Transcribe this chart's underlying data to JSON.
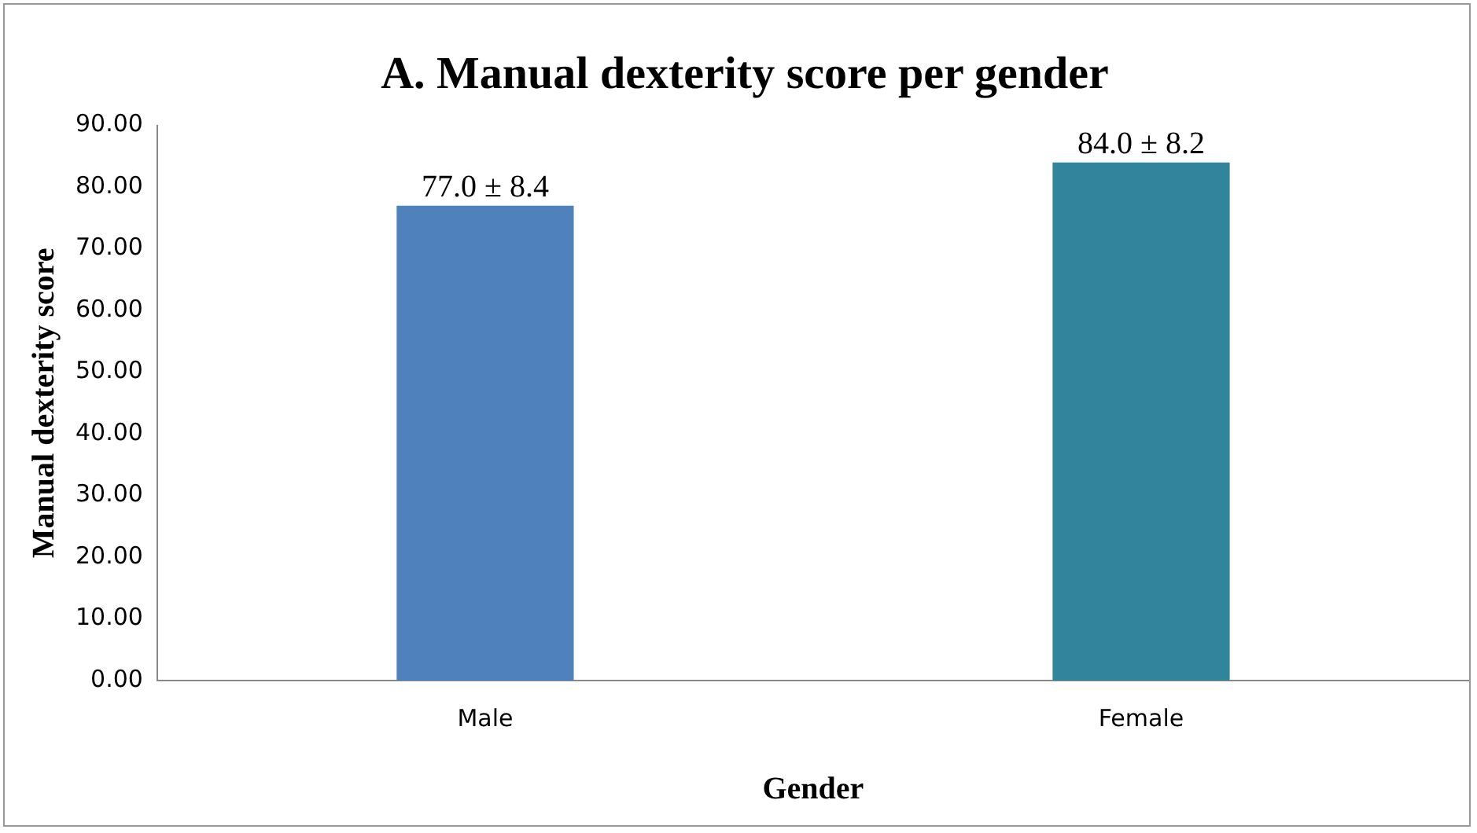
{
  "chart_data": {
    "type": "bar",
    "title": "A. Manual dexterity score per gender",
    "xlabel": "Gender",
    "ylabel": "Manual dexterity score",
    "categories": [
      "Male",
      "Female"
    ],
    "values": [
      77.0,
      84.0
    ],
    "colors": [
      "#4f81bd",
      "#31849b"
    ],
    "value_labels": [
      "77.0 ± 8.4",
      "84.0 ± 8.2"
    ],
    "ylim": [
      0,
      90
    ],
    "yticks": [
      {
        "value": 0,
        "label": "0.00"
      },
      {
        "value": 10,
        "label": "10.00"
      },
      {
        "value": 20,
        "label": "20.00"
      },
      {
        "value": 30,
        "label": "30.00"
      },
      {
        "value": 40,
        "label": "40.00"
      },
      {
        "value": 50,
        "label": "50.00"
      },
      {
        "value": 60,
        "label": "60.00"
      },
      {
        "value": 70,
        "label": "70.00"
      },
      {
        "value": 80,
        "label": "80.00"
      },
      {
        "value": 90,
        "label": "90.00"
      }
    ],
    "grid": false,
    "legend": false
  }
}
